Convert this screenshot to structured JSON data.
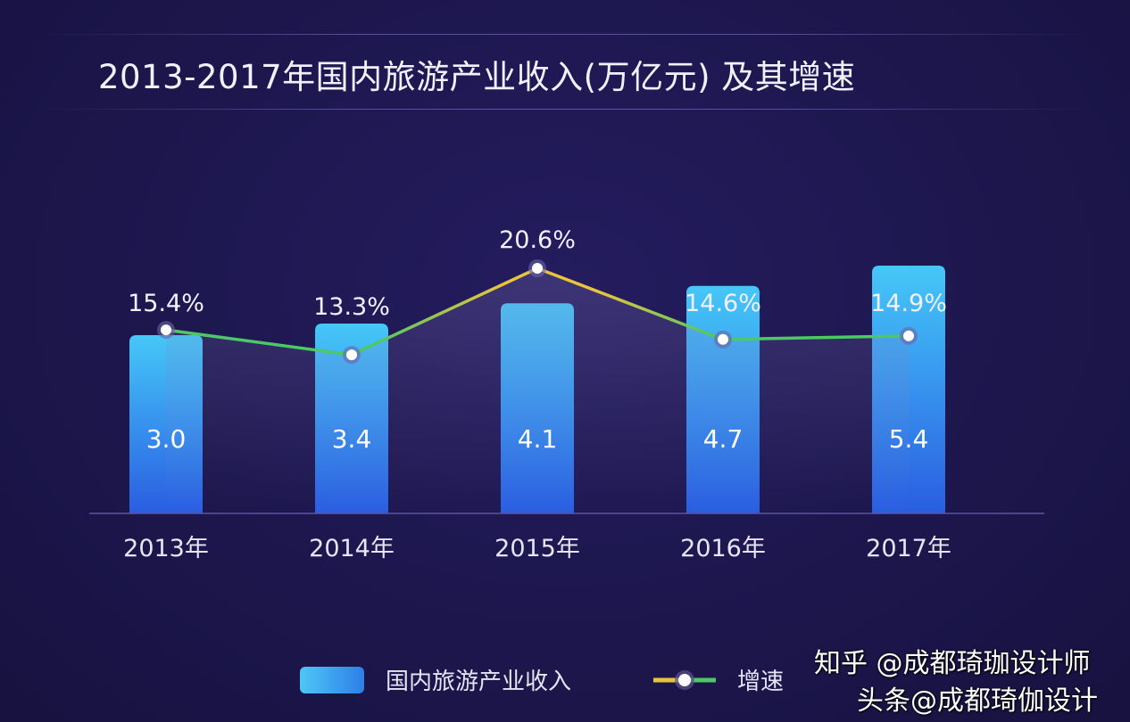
{
  "title": "2013-2017年国内旅游产业收入(万亿元) 及其增速",
  "chart_data": {
    "type": "bar+line",
    "title": "2013-2017年国内旅游产业收入(万亿元) 及其增速",
    "categories": [
      "2013年",
      "2014年",
      "2015年",
      "2016年",
      "2017年"
    ],
    "series": [
      {
        "name": "国内旅游产业收入",
        "type": "bar",
        "values": [
          3.0,
          3.4,
          4.1,
          4.7,
          5.4
        ],
        "labels": [
          "3.0",
          "3.4",
          "4.1",
          "4.7",
          "5.4"
        ],
        "color": "#3a9af0"
      },
      {
        "name": "增速",
        "type": "line",
        "values": [
          15.4,
          13.3,
          20.6,
          14.6,
          14.9
        ],
        "labels": [
          "15.4%",
          "13.3%",
          "20.6%",
          "14.6%",
          "14.9%"
        ],
        "colors": [
          "#4cc864",
          "#e8c53a"
        ]
      }
    ],
    "grid": false,
    "legend": "bottom"
  },
  "legend": {
    "bar_label": "国内旅游产业收入",
    "line_label": "增速"
  },
  "watermark": {
    "line1": "知乎 @成都琦珈设计师",
    "line2": "头条@成都琦伽设计"
  }
}
